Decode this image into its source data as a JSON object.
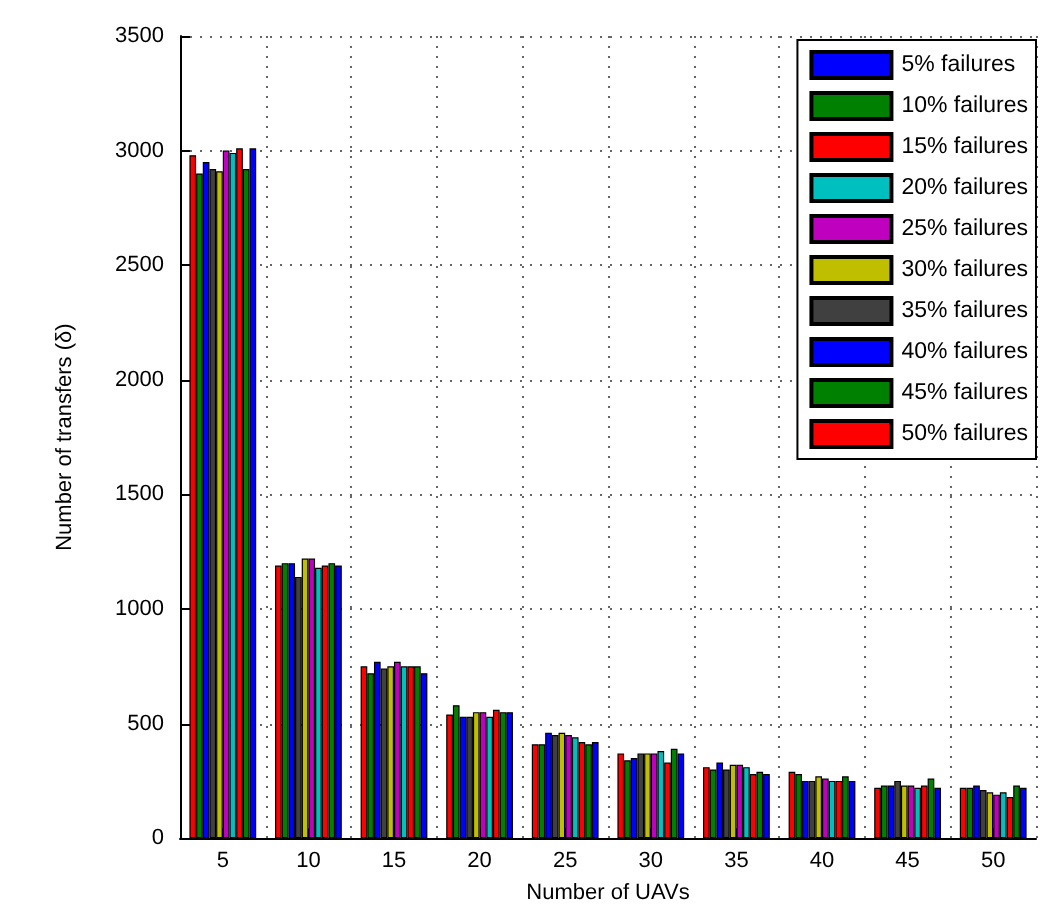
{
  "chart_data": {
    "type": "bar",
    "xlabel": "Number of UAVs",
    "ylabel": "Number of transfers (δ)",
    "categories": [
      "5",
      "10",
      "15",
      "20",
      "25",
      "30",
      "35",
      "40",
      "45",
      "50"
    ],
    "series": [
      {
        "name": "50% failures",
        "color": "#ff0000",
        "values": [
          2980,
          1190,
          750,
          540,
          410,
          370,
          310,
          290,
          220,
          220
        ]
      },
      {
        "name": "45% failures",
        "color": "#008000",
        "values": [
          2900,
          1200,
          720,
          580,
          410,
          340,
          300,
          280,
          230,
          220
        ]
      },
      {
        "name": "40% failures",
        "color": "#0000ff",
        "values": [
          2950,
          1200,
          770,
          530,
          460,
          350,
          330,
          250,
          230,
          230
        ]
      },
      {
        "name": "35% failures",
        "color": "#404040",
        "values": [
          2920,
          1140,
          740,
          530,
          450,
          370,
          300,
          250,
          250,
          210
        ]
      },
      {
        "name": "30% failures",
        "color": "#bfbf00",
        "values": [
          2910,
          1220,
          750,
          550,
          460,
          370,
          320,
          270,
          230,
          200
        ]
      },
      {
        "name": "25% failures",
        "color": "#bf00bf",
        "values": [
          3000,
          1220,
          770,
          550,
          450,
          370,
          320,
          260,
          230,
          190
        ]
      },
      {
        "name": "20% failures",
        "color": "#00bfbf",
        "values": [
          2990,
          1180,
          750,
          530,
          440,
          380,
          310,
          250,
          220,
          200
        ]
      },
      {
        "name": "15% failures",
        "color": "#ff0000",
        "values": [
          3010,
          1190,
          750,
          560,
          420,
          330,
          280,
          250,
          230,
          180
        ]
      },
      {
        "name": "10% failures",
        "color": "#008000",
        "values": [
          2920,
          1200,
          750,
          550,
          410,
          390,
          290,
          270,
          260,
          230
        ]
      },
      {
        "name": "5% failures",
        "color": "#0000ff",
        "values": [
          3010,
          1190,
          720,
          550,
          420,
          370,
          280,
          250,
          220,
          220
        ]
      }
    ],
    "ylim": [
      0,
      3500
    ],
    "yticks": [
      0,
      500,
      1000,
      1500,
      2000,
      2500,
      3000,
      3500
    ],
    "grid": true,
    "legend": "top right"
  }
}
